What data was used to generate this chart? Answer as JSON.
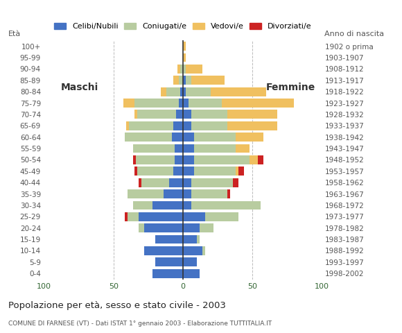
{
  "age_groups": [
    "0-4",
    "5-9",
    "10-14",
    "15-19",
    "20-24",
    "25-29",
    "30-34",
    "35-39",
    "40-44",
    "45-49",
    "50-54",
    "55-59",
    "60-64",
    "65-69",
    "70-74",
    "75-79",
    "80-84",
    "85-89",
    "90-94",
    "95-99",
    "100+"
  ],
  "birth_years": [
    "1998-2002",
    "1993-1997",
    "1988-1992",
    "1983-1987",
    "1978-1982",
    "1973-1977",
    "1968-1972",
    "1963-1967",
    "1958-1962",
    "1953-1957",
    "1948-1952",
    "1943-1947",
    "1938-1942",
    "1933-1937",
    "1928-1932",
    "1923-1927",
    "1918-1922",
    "1913-1917",
    "1908-1912",
    "1903-1907",
    "1902 o prima"
  ],
  "males_celibe": [
    22,
    20,
    28,
    20,
    28,
    32,
    22,
    14,
    10,
    7,
    6,
    6,
    8,
    7,
    5,
    3,
    2,
    0,
    0,
    0,
    0
  ],
  "males_coniugato": [
    0,
    0,
    0,
    0,
    4,
    8,
    14,
    26,
    20,
    26,
    28,
    30,
    34,
    32,
    28,
    32,
    10,
    3,
    2,
    0,
    0
  ],
  "males_vedovo": [
    0,
    0,
    0,
    0,
    0,
    0,
    0,
    0,
    0,
    0,
    0,
    0,
    0,
    2,
    2,
    8,
    4,
    4,
    2,
    0,
    0
  ],
  "males_divorziato": [
    0,
    0,
    0,
    0,
    0,
    2,
    0,
    0,
    2,
    2,
    2,
    0,
    0,
    0,
    0,
    0,
    0,
    0,
    0,
    0,
    0
  ],
  "females_nubile": [
    12,
    10,
    14,
    10,
    12,
    16,
    6,
    6,
    6,
    8,
    8,
    8,
    8,
    6,
    6,
    4,
    2,
    2,
    0,
    0,
    0
  ],
  "females_coniugata": [
    0,
    0,
    2,
    2,
    10,
    24,
    50,
    26,
    30,
    30,
    40,
    30,
    30,
    26,
    26,
    24,
    18,
    4,
    2,
    0,
    0
  ],
  "females_vedova": [
    0,
    0,
    0,
    0,
    0,
    0,
    0,
    0,
    0,
    2,
    6,
    10,
    20,
    36,
    36,
    52,
    40,
    24,
    12,
    2,
    2
  ],
  "females_divorziata": [
    0,
    0,
    0,
    0,
    0,
    0,
    0,
    2,
    4,
    4,
    4,
    0,
    0,
    0,
    0,
    0,
    0,
    0,
    0,
    0,
    0
  ],
  "color_celibe": "#4472c4",
  "color_coniugato": "#b8cca0",
  "color_vedovo": "#f0c060",
  "color_divorziato": "#cc2222",
  "legend_labels": [
    "Celibi/Nubili",
    "Coniugati/e",
    "Vedovi/e",
    "Divorziati/e"
  ],
  "title": "Popolazione per età, sesso e stato civile - 2003",
  "subtitle": "COMUNE DI FARNESE (VT) - Dati ISTAT 1° gennaio 2003 - Elaborazione TUTTITALIA.IT",
  "label_maschi": "Maschi",
  "label_femmine": "Femmine",
  "label_eta": "Età",
  "label_anno": "Anno di nascita",
  "xlim": 100
}
